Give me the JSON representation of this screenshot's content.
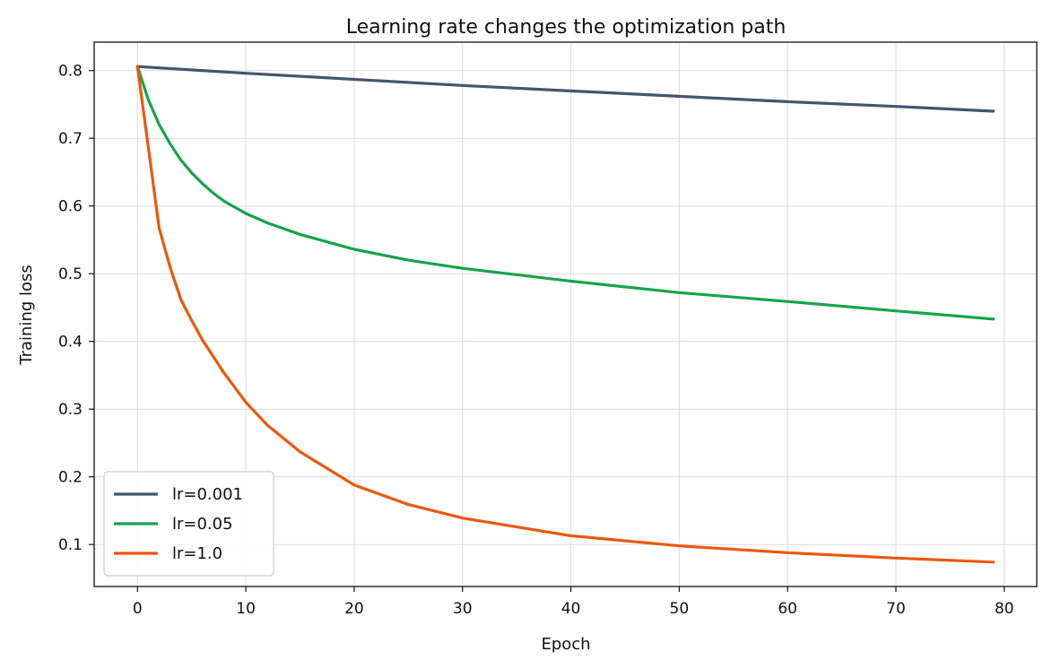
{
  "chart_data": {
    "type": "line",
    "title": "Learning rate changes the optimization path",
    "xlabel": "Epoch",
    "ylabel": "Training loss",
    "xlim": [
      -4,
      83
    ],
    "ylim": [
      0.038,
      0.842
    ],
    "xticks": [
      0,
      10,
      20,
      30,
      40,
      50,
      60,
      70,
      80
    ],
    "yticks": [
      0.1,
      0.2,
      0.3,
      0.4,
      0.5,
      0.6,
      0.7,
      0.8
    ],
    "xtick_labels": [
      "0",
      "10",
      "20",
      "30",
      "40",
      "50",
      "60",
      "70",
      "80"
    ],
    "ytick_labels": [
      "0.1",
      "0.2",
      "0.3",
      "0.4",
      "0.5",
      "0.6",
      "0.7",
      "0.8"
    ],
    "grid": true,
    "legend_position": "lower-left",
    "series": [
      {
        "name": "lr=0.001",
        "color": "#475569",
        "x": [
          0,
          10,
          20,
          30,
          40,
          50,
          60,
          70,
          79
        ],
        "y": [
          0.806,
          0.796,
          0.787,
          0.778,
          0.77,
          0.762,
          0.754,
          0.747,
          0.74
        ]
      },
      {
        "name": "lr=0.05",
        "color": "#16a34a",
        "x": [
          0,
          1,
          2,
          3,
          4,
          5,
          6,
          7,
          8,
          10,
          12,
          15,
          20,
          25,
          30,
          40,
          50,
          60,
          70,
          79
        ],
        "y": [
          0.806,
          0.757,
          0.72,
          0.692,
          0.668,
          0.649,
          0.633,
          0.619,
          0.607,
          0.589,
          0.575,
          0.558,
          0.536,
          0.52,
          0.508,
          0.489,
          0.472,
          0.459,
          0.445,
          0.433
        ]
      },
      {
        "name": "lr=1.0",
        "color": "#ea580c",
        "x": [
          0,
          2,
          3,
          4,
          5,
          6,
          8,
          10,
          12,
          15,
          20,
          25,
          30,
          40,
          50,
          60,
          70,
          79
        ],
        "y": [
          0.806,
          0.567,
          0.51,
          0.462,
          0.431,
          0.402,
          0.353,
          0.31,
          0.276,
          0.237,
          0.188,
          0.159,
          0.139,
          0.113,
          0.098,
          0.088,
          0.08,
          0.074
        ]
      }
    ]
  }
}
